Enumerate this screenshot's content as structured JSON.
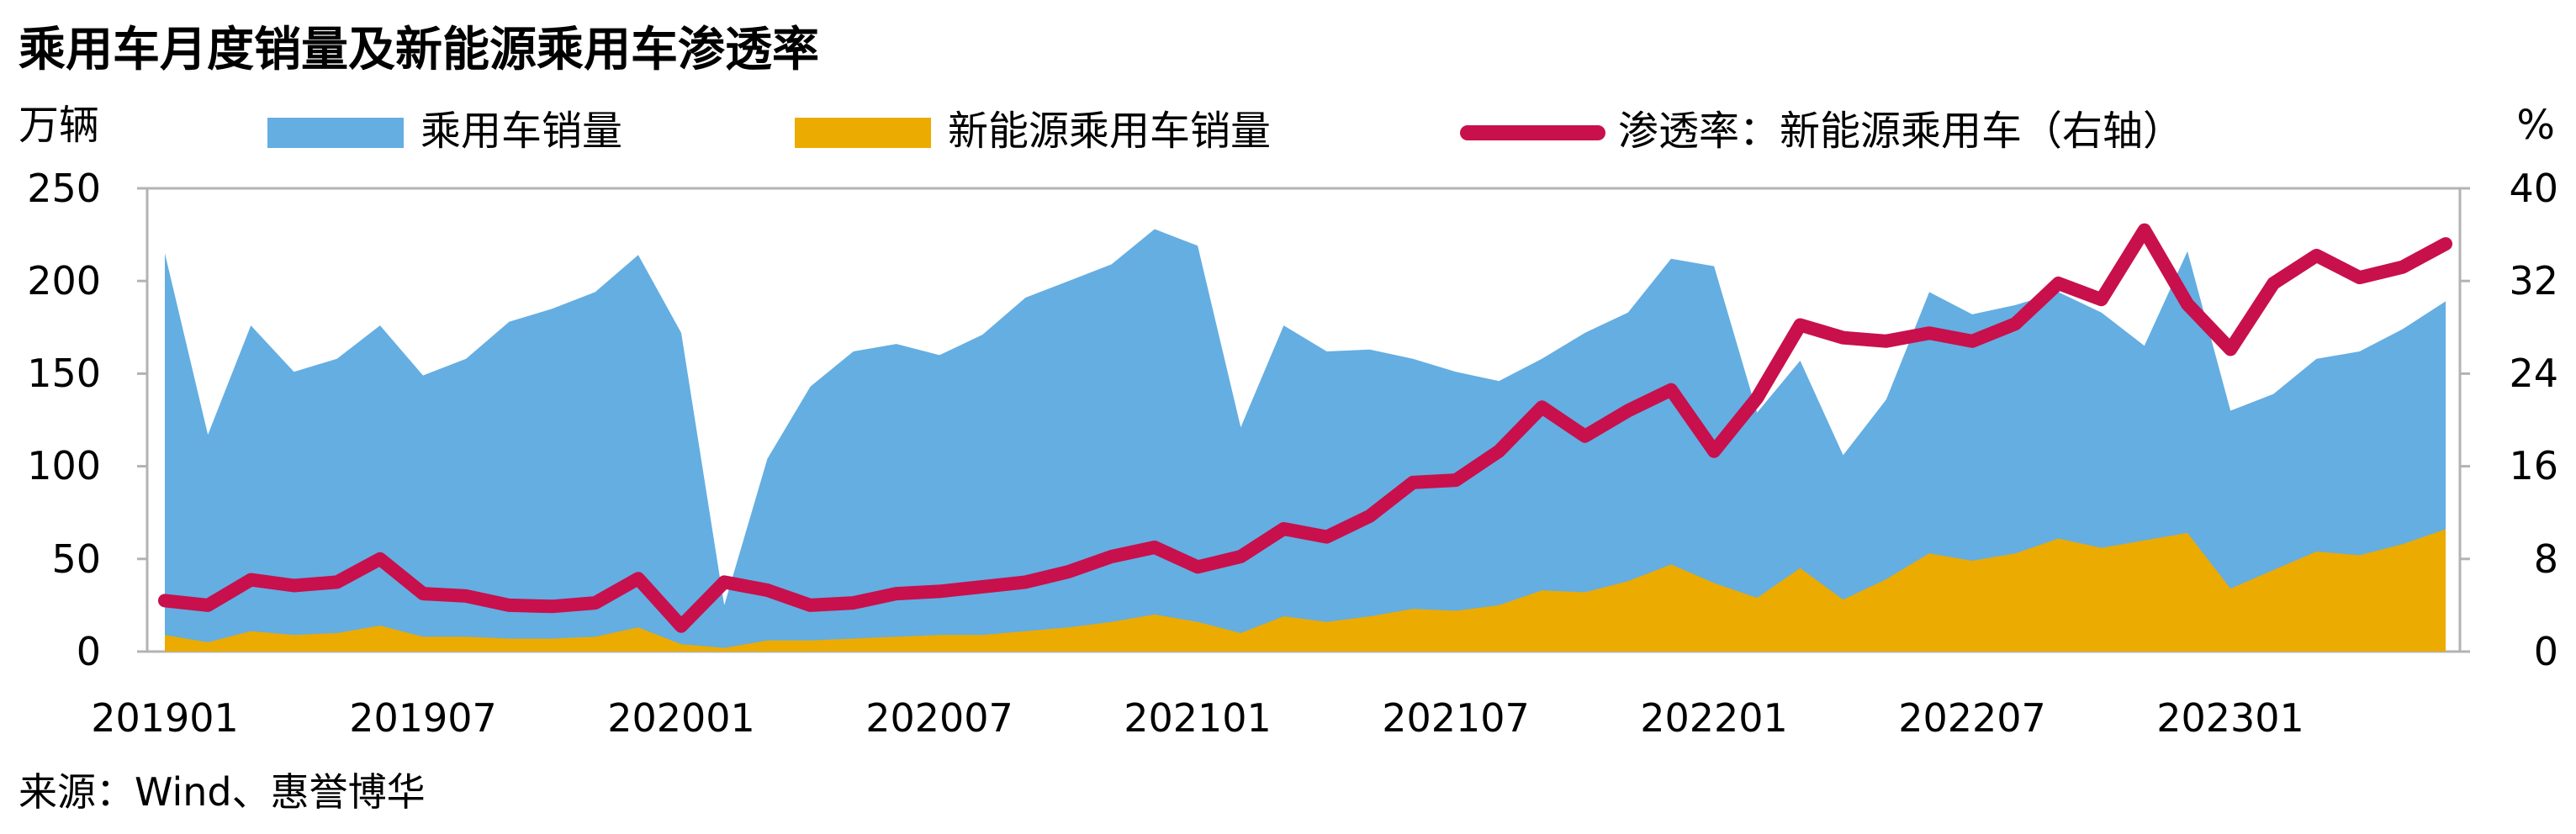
{
  "chart_data": {
    "type": "area+line",
    "title": "乘用车月度销量及新能源乘用车渗透率",
    "y_left_unit": "万辆",
    "y_right_unit": "%",
    "source": "来源：Wind、惠誉博华",
    "ylim_left": [
      0,
      250
    ],
    "ylim_right": [
      0,
      40
    ],
    "y_left_ticks": [
      "0",
      "50",
      "100",
      "150",
      "200",
      "250"
    ],
    "y_right_ticks": [
      "0",
      "8",
      "16",
      "24",
      "32",
      "40"
    ],
    "x_tick_labels": [
      "201901",
      "201907",
      "202001",
      "202007",
      "202101",
      "202107",
      "202201",
      "202207",
      "202301"
    ],
    "legend_position": "top",
    "grid": false,
    "x": [
      "201901",
      "201902",
      "201903",
      "201904",
      "201905",
      "201906",
      "201907",
      "201908",
      "201909",
      "201910",
      "201911",
      "201912",
      "202001",
      "202002",
      "202003",
      "202004",
      "202005",
      "202006",
      "202007",
      "202008",
      "202009",
      "202010",
      "202011",
      "202012",
      "202101",
      "202102",
      "202103",
      "202104",
      "202105",
      "202106",
      "202107",
      "202108",
      "202109",
      "202110",
      "202111",
      "202112",
      "202201",
      "202202",
      "202203",
      "202204",
      "202205",
      "202206",
      "202207",
      "202208",
      "202209",
      "202210",
      "202211",
      "202212",
      "202301",
      "202302",
      "202303",
      "202304",
      "202305",
      "202306"
    ],
    "series": [
      {
        "name": "乘用车销量",
        "type": "area",
        "axis": "left",
        "color": "#64AEE2",
        "values": [
          215,
          117,
          176,
          151,
          158,
          176,
          149,
          158,
          178,
          185,
          194,
          214,
          172,
          25,
          104,
          143,
          162,
          166,
          160,
          171,
          191,
          200,
          209,
          228,
          219,
          121,
          176,
          162,
          163,
          158,
          151,
          146,
          158,
          172,
          183,
          212,
          208,
          129,
          157,
          106,
          136,
          194,
          182,
          187,
          194,
          183,
          165,
          216,
          130,
          139,
          158,
          162,
          174,
          189
        ]
      },
      {
        "name": "新能源乘用车销量",
        "type": "area",
        "axis": "left",
        "color": "#EBAB00",
        "values": [
          9,
          5,
          11,
          9,
          10,
          14,
          8,
          8,
          7,
          7,
          8,
          13,
          4,
          2,
          6,
          6,
          7,
          8,
          9,
          9,
          11,
          13,
          16,
          20,
          16,
          10,
          19,
          16,
          19,
          23,
          22,
          25,
          33,
          32,
          38,
          47,
          37,
          29,
          45,
          28,
          39,
          53,
          49,
          53,
          61,
          56,
          60,
          64,
          34,
          44,
          54,
          52,
          58,
          66
        ]
      },
      {
        "name": "渗透率：新能源乘用车（右轴）",
        "type": "line",
        "axis": "right",
        "color": "#C8104C",
        "values": [
          4.4,
          4.0,
          6.2,
          5.7,
          6.0,
          8.0,
          5.0,
          4.8,
          4.0,
          3.9,
          4.2,
          6.3,
          2.2,
          6.0,
          5.3,
          4.0,
          4.2,
          5.0,
          5.2,
          5.6,
          6.0,
          6.9,
          8.2,
          9.0,
          7.3,
          8.2,
          10.6,
          9.9,
          11.7,
          14.6,
          14.8,
          17.3,
          21.1,
          18.6,
          20.8,
          22.6,
          17.3,
          21.9,
          28.2,
          27.1,
          26.8,
          27.5,
          26.8,
          28.3,
          31.8,
          30.4,
          36.4,
          30.0,
          26.1,
          31.8,
          34.2,
          32.3,
          33.2,
          35.2
        ]
      }
    ]
  }
}
